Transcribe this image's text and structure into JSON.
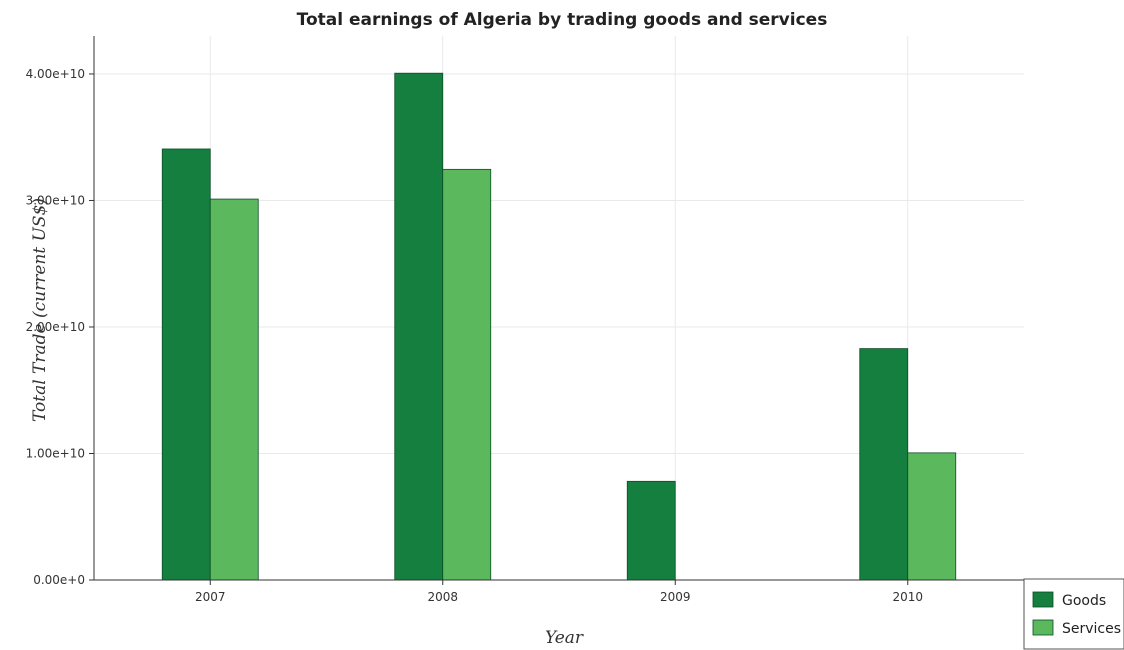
{
  "colors": {
    "goods": "#147f3e",
    "services": "#5cb85c",
    "bar_edge": "#0b4d26",
    "axis": "#333333",
    "grid": "#e9e9e9"
  },
  "chart_data": {
    "type": "bar",
    "title": "Total earnings of Algeria by trading goods and services",
    "xlabel": "Year",
    "ylabel": "Total Trade (current US$)",
    "categories": [
      "2007",
      "2008",
      "2009",
      "2010"
    ],
    "series": [
      {
        "name": "Goods",
        "values": [
          34070000000,
          40060000000,
          7800000000,
          18290000000
        ]
      },
      {
        "name": "Services",
        "values": [
          30110000000,
          32460000000,
          0,
          10050000000
        ]
      }
    ],
    "ylim": [
      0,
      43000000000
    ],
    "yticks": [
      0,
      10000000000,
      20000000000,
      30000000000,
      40000000000
    ],
    "ytick_labels": [
      "0.00e+0",
      "1.00e+10",
      "2.00e+10",
      "3.00e+10",
      "4.00e+10"
    ],
    "grid": true,
    "legend_position": "bottom-right"
  }
}
